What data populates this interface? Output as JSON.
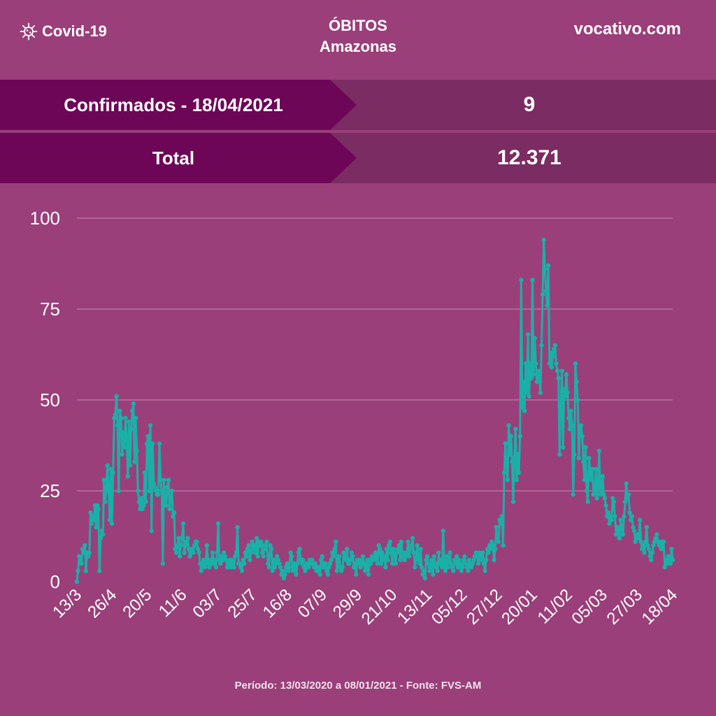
{
  "header": {
    "brand": "Covid-19",
    "brand_icon": "virus-icon",
    "title_line1": "ÓBITOS",
    "title_line2": "Amazonas",
    "site": "vocativo.com"
  },
  "stats": {
    "confirmed_label": "Confirmados - 18/04/2021",
    "confirmed_value": "9",
    "total_label": "Total",
    "total_value": "12.371"
  },
  "footer": "Período: 13/03/2020 a 08/01/2021 - Fonte: FVS-AM",
  "colors": {
    "background": "#9a3f7a",
    "banner_dark": "#6e0657",
    "banner_light": "#7b2c62",
    "series": "#1ab0a8"
  },
  "chart_data": {
    "type": "line",
    "title": "",
    "xlabel": "",
    "ylabel": "",
    "ylim": [
      0,
      100
    ],
    "yticks": [
      0,
      25,
      50,
      75,
      100
    ],
    "grid": true,
    "legend": "none",
    "xtick_labels": [
      "13/3",
      "26/4",
      "20/5",
      "11/6",
      "03/7",
      "25/7",
      "16/8",
      "07/9",
      "29/9",
      "21/10",
      "13/11",
      "05/12",
      "27/12",
      "20/01",
      "11/02",
      "05/03",
      "27/03",
      "18/04"
    ],
    "x_start": "13/03/2020",
    "x_end": "18/04/2021",
    "series": [
      {
        "name": "",
        "values": [
          0,
          3,
          7,
          6,
          5,
          9,
          8,
          10,
          3,
          8,
          7,
          8,
          19,
          16,
          18,
          17,
          21,
          15,
          21,
          20,
          3,
          12,
          14,
          13,
          28,
          22,
          25,
          32,
          26,
          17,
          31,
          16,
          30,
          45,
          46,
          51,
          43,
          25,
          47,
          45,
          35,
          41,
          37,
          45,
          40,
          29,
          44,
          32,
          42,
          47,
          49,
          33,
          45,
          36,
          25,
          22,
          20,
          23,
          20,
          21,
          30,
          22,
          38,
          40,
          25,
          43,
          14,
          38,
          27,
          26,
          25,
          24,
          24,
          38,
          28,
          25,
          5,
          28,
          21,
          21,
          26,
          28,
          20,
          23,
          25,
          18,
          19,
          9,
          8,
          10,
          12,
          7,
          10,
          12,
          16,
          8,
          10,
          11,
          12,
          9,
          7,
          8,
          9,
          8,
          10,
          11,
          11,
          9,
          8,
          5,
          3,
          5,
          6,
          4,
          5,
          10,
          6,
          4,
          6,
          5,
          8,
          5,
          6,
          4,
          8,
          16,
          6,
          5,
          7,
          6,
          8,
          7,
          6,
          4,
          5,
          6,
          4,
          6,
          5,
          4,
          7,
          8,
          15,
          5,
          5,
          4,
          3,
          6,
          5,
          8,
          7,
          9,
          10,
          6,
          8,
          11,
          9,
          10,
          8,
          12,
          7,
          11,
          10,
          11,
          8,
          7,
          10,
          9,
          11,
          5,
          4,
          10,
          9,
          3,
          6,
          4,
          5,
          7,
          6,
          5,
          4,
          2,
          3,
          1,
          2,
          4,
          5,
          3,
          4,
          8,
          7,
          3,
          5,
          4,
          2,
          5,
          8,
          9,
          6,
          5,
          6,
          4,
          3,
          5,
          4,
          4,
          6,
          5,
          6,
          5,
          4,
          5,
          3,
          4,
          3,
          2,
          6,
          7,
          4,
          5,
          5,
          3,
          2,
          4,
          5,
          6,
          8,
          7,
          9,
          11,
          3,
          6,
          7,
          4,
          3,
          4,
          8,
          7,
          6,
          9,
          5,
          5,
          6,
          8,
          7,
          4,
          5,
          2,
          6,
          5,
          6,
          4,
          5,
          7,
          5,
          3,
          4,
          6,
          2,
          6,
          5,
          7,
          6,
          6,
          8,
          7,
          5,
          10,
          9,
          5,
          8,
          6,
          7,
          4,
          9,
          6,
          10,
          11,
          8,
          5,
          9,
          7,
          5,
          8,
          9,
          10,
          6,
          11,
          7,
          8,
          6,
          7,
          8,
          11,
          7,
          9,
          10,
          12,
          8,
          4,
          6,
          10,
          7,
          5,
          9,
          4,
          2,
          3,
          1,
          6,
          7,
          5,
          3,
          4,
          6,
          2,
          7,
          5,
          4,
          3,
          8,
          5,
          6,
          4,
          14,
          5,
          3,
          7,
          4,
          6,
          8,
          5,
          4,
          3,
          6,
          5,
          7,
          4,
          6,
          5,
          3,
          4,
          6,
          7,
          5,
          4,
          3,
          6,
          5,
          4,
          5,
          6,
          7,
          8,
          7,
          5,
          8,
          6,
          7,
          8,
          5,
          3,
          6,
          9,
          8,
          10,
          9,
          11,
          10,
          6,
          9,
          15,
          12,
          11,
          17,
          16,
          18,
          10,
          30,
          38,
          32,
          28,
          43,
          35,
          40,
          33,
          22,
          34,
          42,
          28,
          35,
          30,
          40,
          83,
          48,
          55,
          47,
          60,
          52,
          68,
          51,
          60,
          56,
          83,
          57,
          67,
          60,
          55,
          56,
          58,
          52,
          65,
          79,
          94,
          86,
          80,
          76,
          87,
          60,
          63,
          59,
          62,
          64,
          65,
          60,
          58,
          56,
          35,
          48,
          58,
          37,
          53,
          51,
          57,
          52,
          45,
          42,
          47,
          43,
          24,
          35,
          60,
          55,
          50,
          34,
          42,
          43,
          40,
          33,
          28,
          37,
          25,
          22,
          34,
          30,
          28,
          31,
          24,
          25,
          31,
          23,
          26,
          36,
          24,
          25,
          29,
          24,
          23,
          21,
          18,
          19,
          16,
          18,
          17,
          23,
          22,
          18,
          13,
          15,
          14,
          12,
          17,
          15,
          13,
          18,
          22,
          27,
          23,
          24,
          19,
          17,
          18,
          15,
          14,
          11,
          12,
          13,
          12,
          17,
          11,
          9,
          10,
          8,
          11,
          15,
          10,
          9,
          7,
          6,
          8,
          10,
          11,
          12,
          13,
          11,
          10,
          11,
          9,
          10,
          11,
          4,
          6,
          5,
          7,
          6,
          5,
          9,
          6
        ]
      }
    ]
  }
}
